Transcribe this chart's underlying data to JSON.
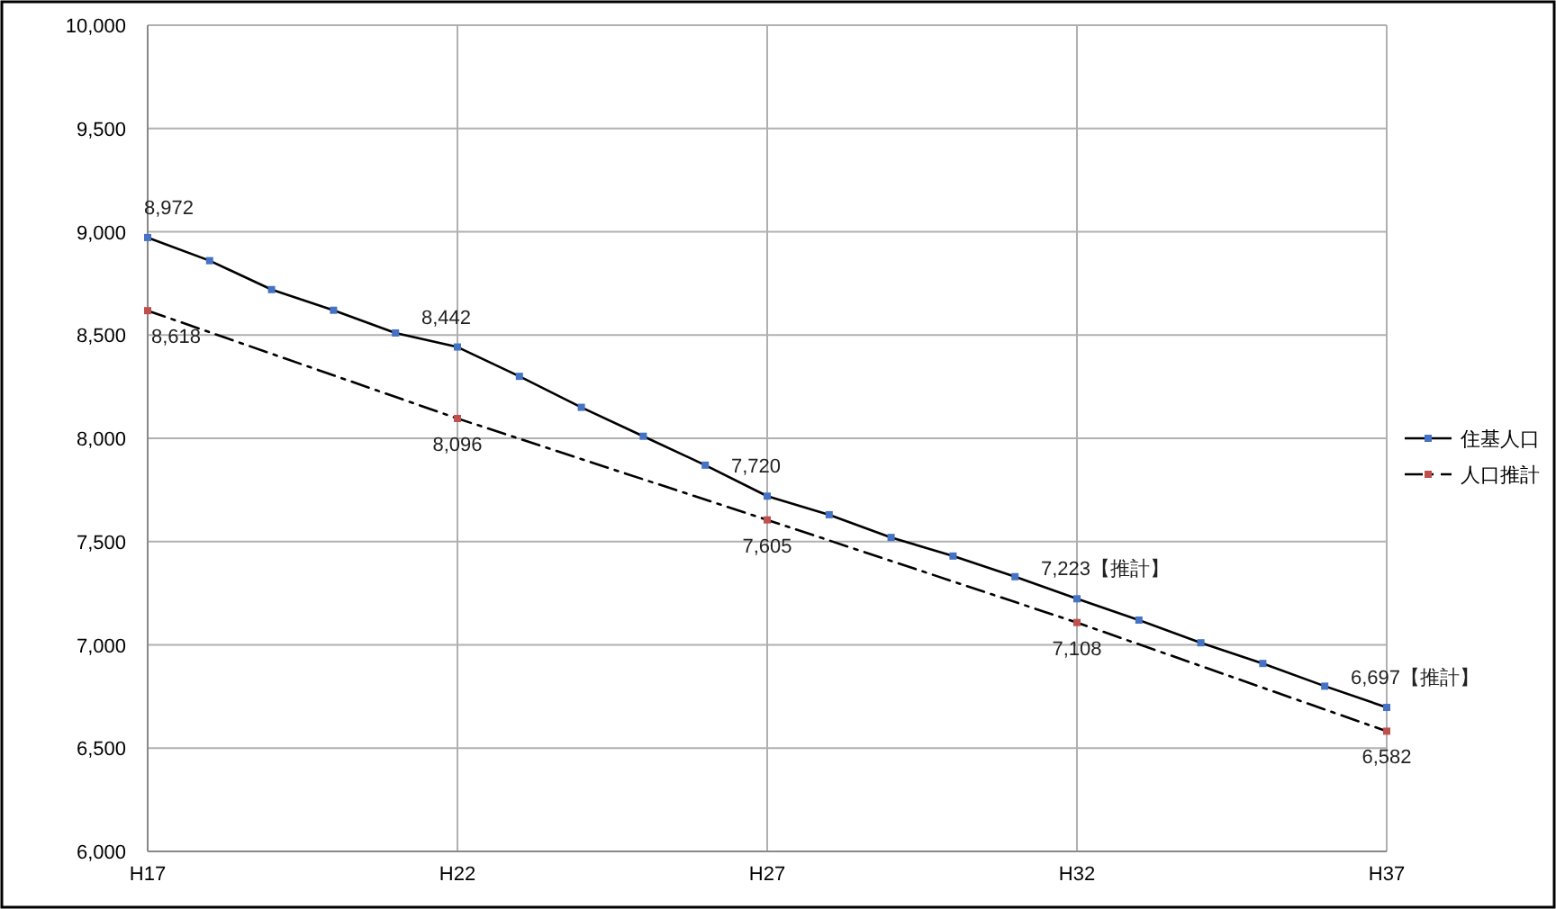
{
  "chart_data": {
    "type": "line",
    "categories": [
      "H17",
      null,
      null,
      null,
      null,
      "H22",
      null,
      null,
      null,
      null,
      "H27",
      null,
      null,
      null,
      null,
      "H32",
      null,
      null,
      null,
      null,
      "H37"
    ],
    "ylim": [
      6000,
      10000
    ],
    "yticks": [
      {
        "value": 6000,
        "label": "6,000"
      },
      {
        "value": 6500,
        "label": "6,500"
      },
      {
        "value": 7000,
        "label": "7,000"
      },
      {
        "value": 7500,
        "label": "7,500"
      },
      {
        "value": 8000,
        "label": "8,000"
      },
      {
        "value": 8500,
        "label": "8,500"
      },
      {
        "value": 9000,
        "label": "9,000"
      },
      {
        "value": 9500,
        "label": "9,500"
      },
      {
        "value": 10000,
        "label": "10,000"
      }
    ],
    "grid": true,
    "legend": "right",
    "marker": "square",
    "series": [
      {
        "name": "住基人口",
        "color": "#4472c4",
        "line_style": "solid",
        "values": [
          8972,
          8860,
          8720,
          8620,
          8510,
          8442,
          8300,
          8150,
          8010,
          7870,
          7720,
          7630,
          7520,
          7430,
          7330,
          7223,
          7120,
          7010,
          6910,
          6800,
          6697
        ],
        "value_labels": [
          "8,972",
          null,
          null,
          null,
          null,
          "8,442",
          null,
          null,
          null,
          null,
          "7,720",
          null,
          null,
          null,
          null,
          "7,223【推計】",
          null,
          null,
          null,
          null,
          "6,697【推計】"
        ]
      },
      {
        "name": "人口推計",
        "color": "#c0504d",
        "line_style": "dashed",
        "x": [
          "H17",
          "H22",
          "H27",
          "H32",
          "H37"
        ],
        "values": [
          8618,
          8096,
          7605,
          7108,
          6582
        ],
        "value_labels": [
          "8,618",
          "8,096",
          "7,605",
          "7,108",
          "6,582"
        ]
      }
    ]
  }
}
